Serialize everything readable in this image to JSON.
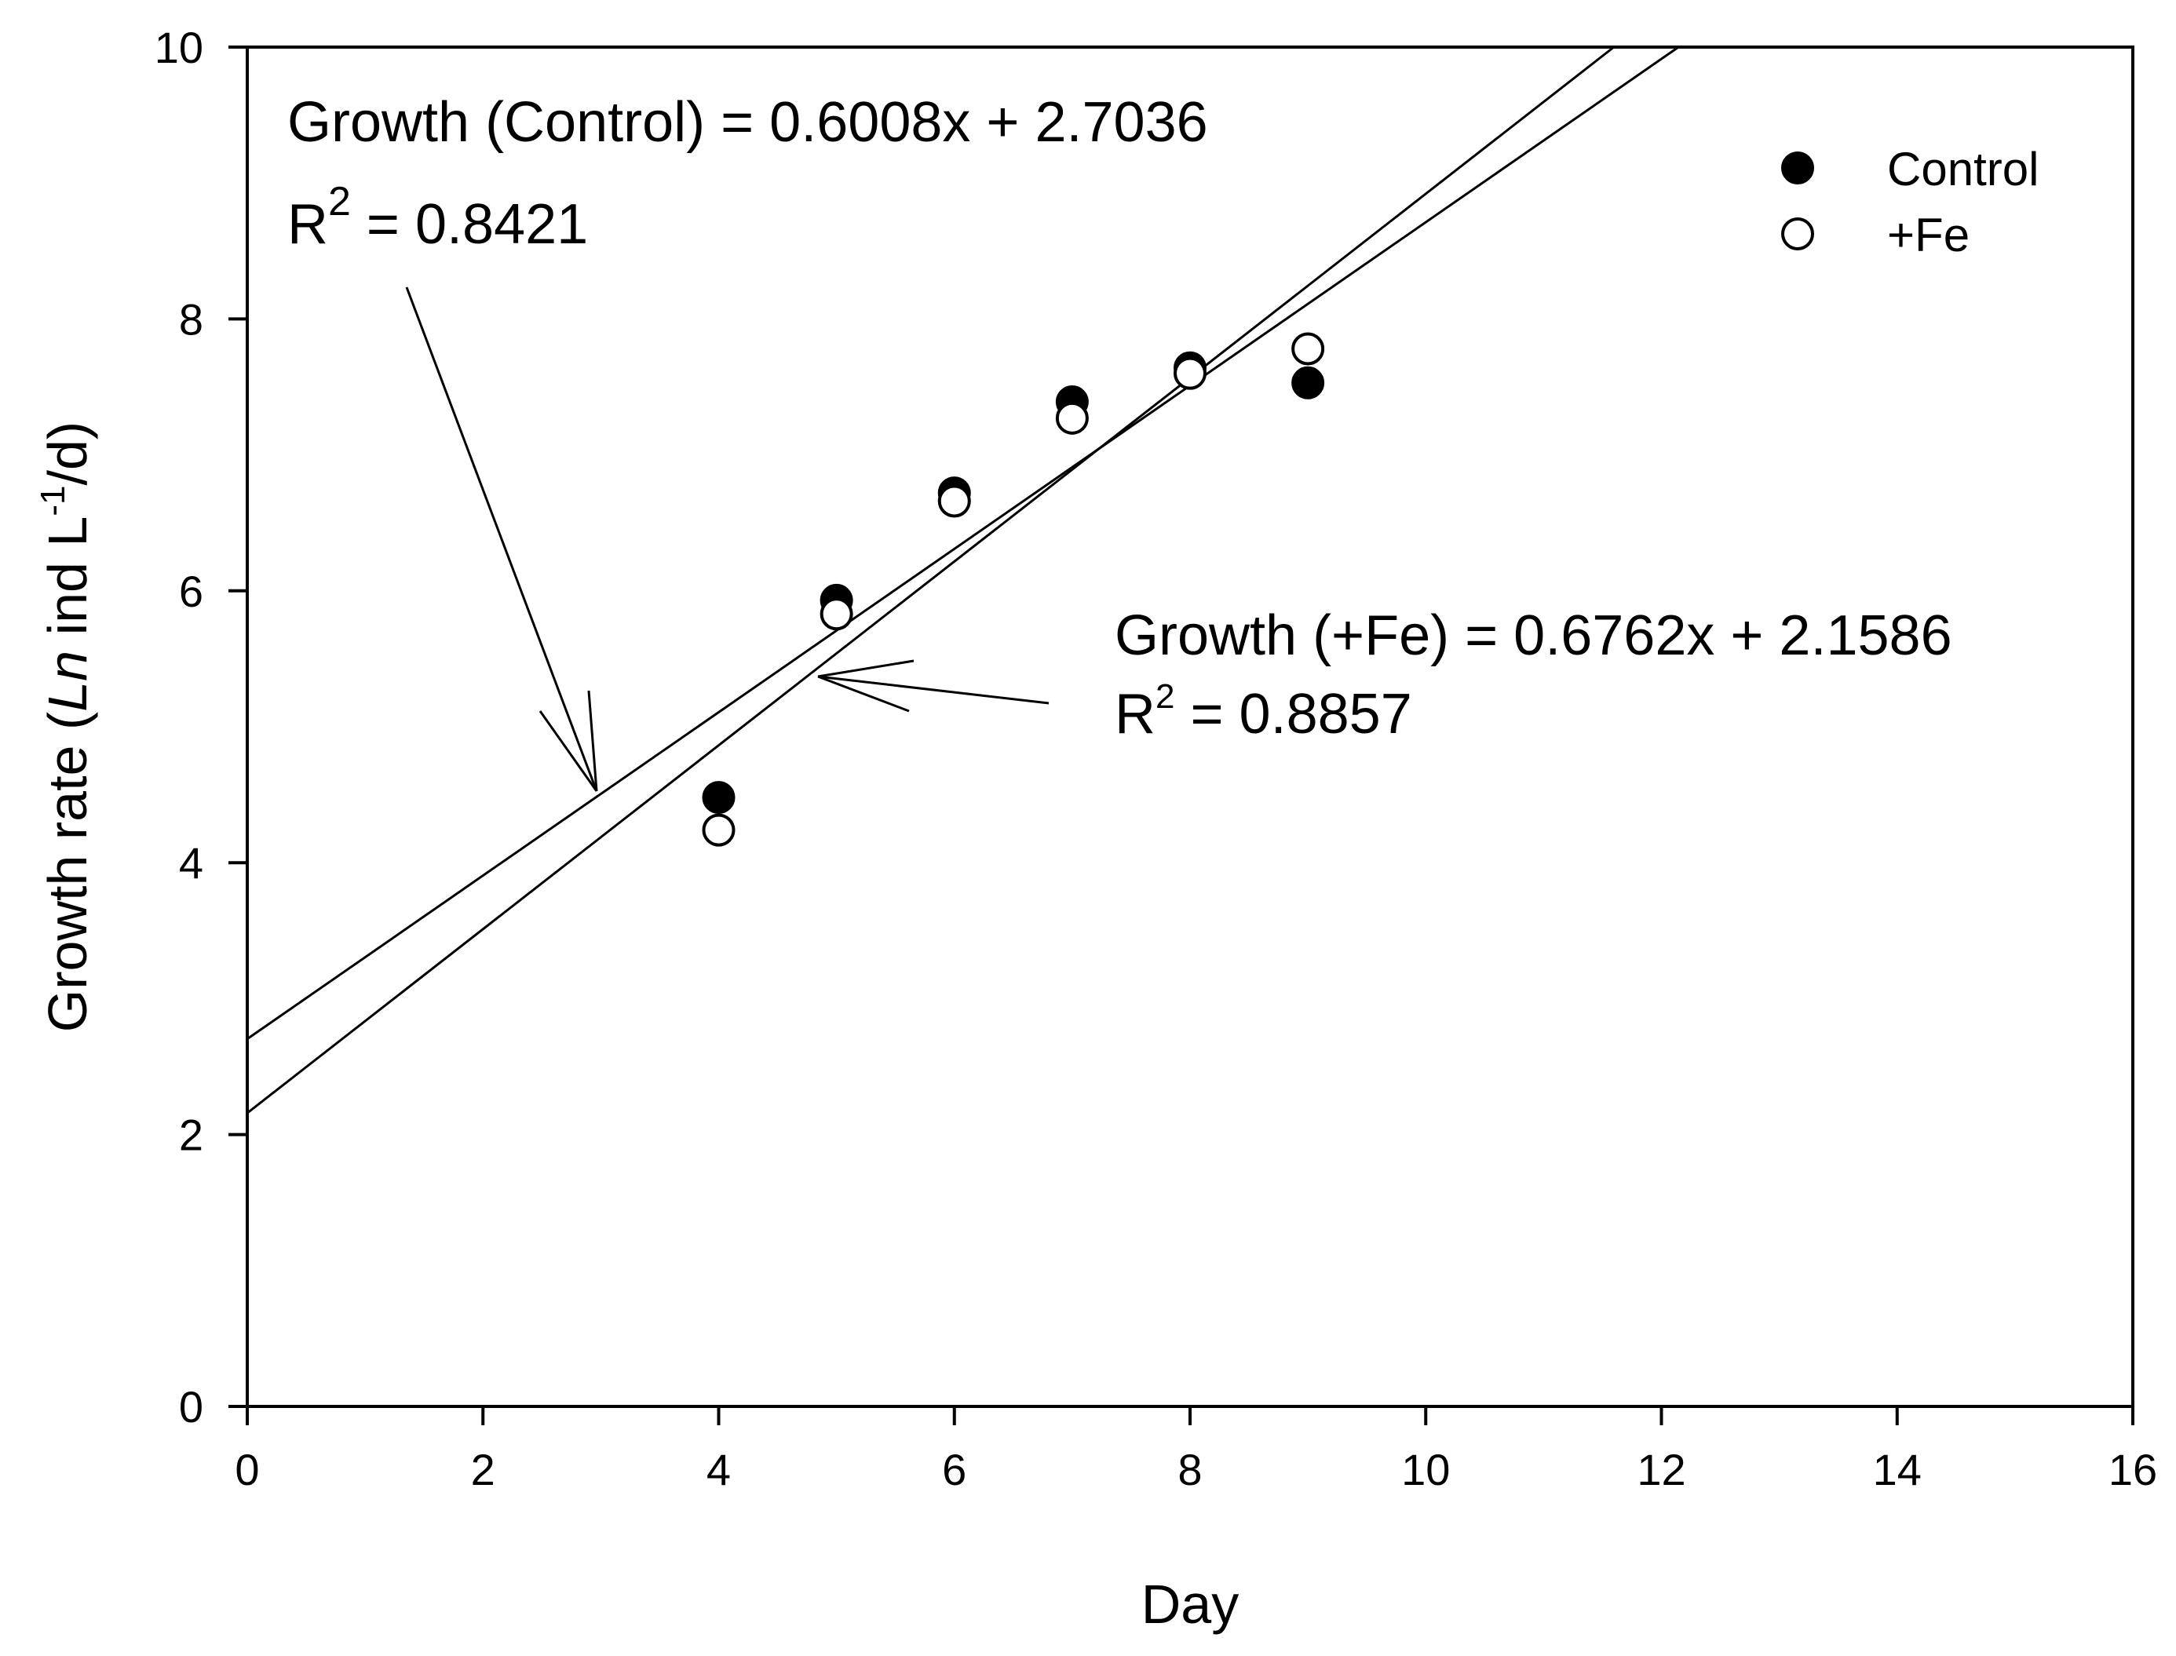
{
  "chart_data": {
    "type": "scatter",
    "title": "",
    "xlabel": "Day",
    "ylabel": {
      "prefix": "Growth rate (",
      "italic": "Ln",
      "middle": " ind L",
      "superscript": "-1",
      "suffix": "/d)"
    },
    "xlim": [
      0,
      16
    ],
    "ylim": [
      0,
      10
    ],
    "xticks": [
      0,
      2,
      4,
      6,
      8,
      10,
      12,
      14,
      16
    ],
    "yticks": [
      0,
      2,
      4,
      6,
      8,
      10
    ],
    "grid": false,
    "legend_position": "top-right",
    "series": [
      {
        "name": "Control",
        "marker": "filled-circle",
        "color": "#000000",
        "x": [
          4,
          5,
          6,
          7,
          8,
          9
        ],
        "y": [
          4.48,
          5.93,
          6.72,
          7.39,
          7.64,
          7.53
        ],
        "fit": {
          "slope": 0.6008,
          "intercept": 2.7036,
          "r2": 0.8421
        }
      },
      {
        "name": "+Fe",
        "marker": "open-circle",
        "color": "#000000",
        "x": [
          4,
          5,
          6,
          7,
          8,
          9
        ],
        "y": [
          4.24,
          5.83,
          6.66,
          7.27,
          7.6,
          7.78
        ],
        "fit": {
          "slope": 0.6762,
          "intercept": 2.1586,
          "r2": 0.8857
        }
      }
    ],
    "annotations": [
      {
        "series": "Control",
        "equation": "Growth (Control) = 0.6008x + 2.7036",
        "r2_base": "R",
        "r2_sup": "2",
        "r2_rest": " = 0.8421",
        "arrow_to": [
          3,
          4.5
        ]
      },
      {
        "series": "+Fe",
        "equation": "Growth (+Fe) = 0.6762x + 2.1586",
        "r2_base": "R",
        "r2_sup": "2",
        "r2_rest": " = 0.8857",
        "arrow_to": [
          4.85,
          5.4
        ]
      }
    ]
  }
}
